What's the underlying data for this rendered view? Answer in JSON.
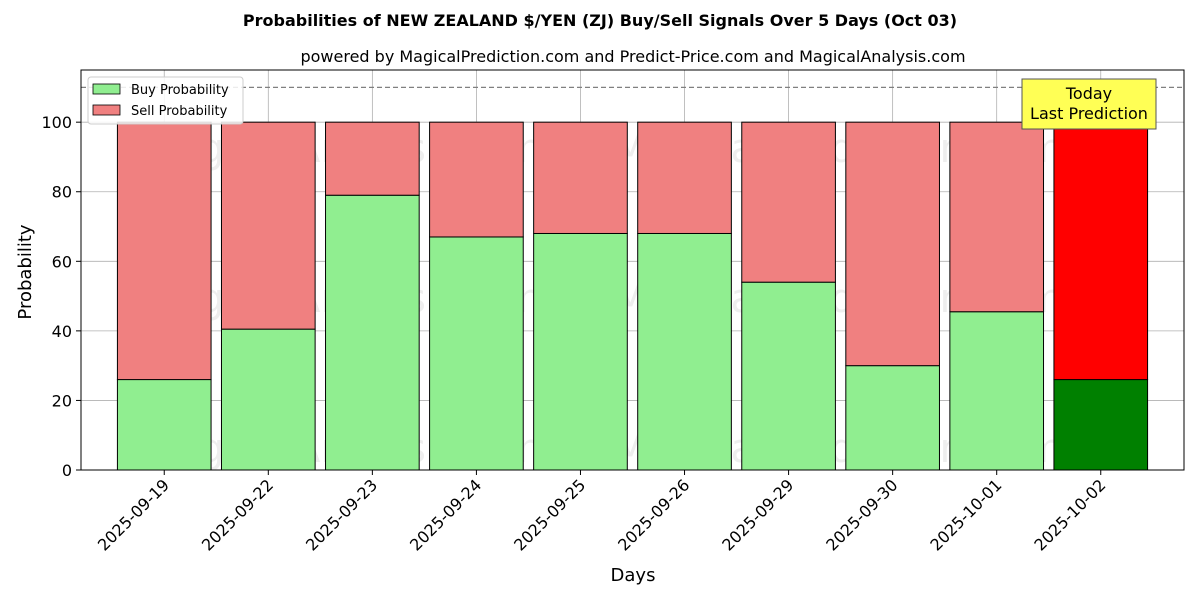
{
  "chart_data": {
    "type": "bar",
    "stacked": true,
    "title": "Probabilities of NEW ZEALAND $/YEN (ZJ) Buy/Sell Signals Over 5 Days (Oct 03)",
    "subtitle": "powered by MagicalPrediction.com and Predict-Price.com and MagicalAnalysis.com",
    "xlabel": "Days",
    "ylabel": "Probability",
    "ylim": [
      0,
      115
    ],
    "yticks": [
      0,
      20,
      40,
      60,
      80,
      100
    ],
    "grid": true,
    "legend_position": "top-left",
    "categories": [
      "2025-09-19",
      "2025-09-22",
      "2025-09-23",
      "2025-09-24",
      "2025-09-25",
      "2025-09-26",
      "2025-09-29",
      "2025-09-30",
      "2025-10-01",
      "2025-10-02"
    ],
    "series": [
      {
        "name": "Buy Probability",
        "color": "#90ee90",
        "highlight_color": "#008000",
        "values": [
          26,
          40.5,
          79,
          67,
          68,
          68,
          54,
          30,
          45.5,
          26
        ]
      },
      {
        "name": "Sell Probability",
        "color": "#f08080",
        "highlight_color": "#ff0000",
        "values": [
          74,
          59.5,
          21,
          33,
          32,
          32,
          46,
          70,
          54.5,
          74
        ]
      }
    ],
    "highlight_index": 9,
    "reference_line": {
      "y": 110,
      "style": "dashed",
      "color": "#808080"
    },
    "annotation": {
      "lines": [
        "Today",
        "Last Prediction"
      ],
      "background": "#ffff55"
    },
    "watermarks": [
      "MagicalAnalysis.com",
      "MagicalPrediction.com"
    ]
  }
}
